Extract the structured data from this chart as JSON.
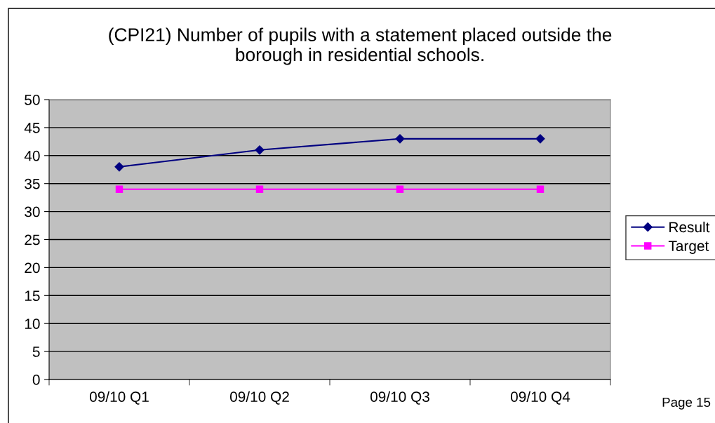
{
  "chart_data": {
    "type": "line",
    "title": "(CPI21) Number of pupils with a statement placed outside the\nborough in residential schools.",
    "categories": [
      "09/10 Q1",
      "09/10 Q2",
      "09/10 Q3",
      "09/10 Q4"
    ],
    "series": [
      {
        "name": "Result",
        "color": "#000080",
        "values": [
          38,
          41,
          43,
          43
        ],
        "marker": "diamond"
      },
      {
        "name": "Target",
        "color": "#ff00ff",
        "values": [
          34,
          34,
          34,
          34
        ],
        "marker": "square"
      }
    ],
    "ylim": [
      0,
      50
    ],
    "yticks": [
      0,
      5,
      10,
      15,
      20,
      25,
      30,
      35,
      40,
      45,
      50
    ],
    "grid": "y",
    "legend": "right",
    "line_style": "solid",
    "annotations": [
      "Page 15"
    ]
  }
}
